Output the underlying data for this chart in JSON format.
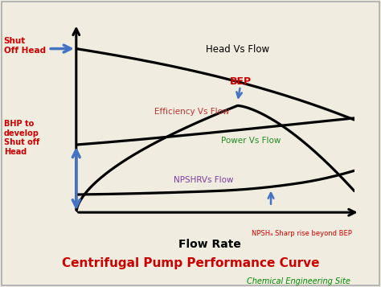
{
  "title": "Centrifugal Pump Performance Curve",
  "subtitle": "Chemical Engineering Site",
  "title_color": "#cc0000",
  "subtitle_color": "#008800",
  "xlabel": "Flow Rate",
  "background_color": "#f0ece0",
  "border_color": "#aaaaaa",
  "head_label": "Head Vs Flow",
  "eff_label": "Efficiency Vs Flow",
  "power_label": "Power Vs Flow",
  "npshr_label": "NPSHRVs Flow",
  "eff_color": "#bb3333",
  "power_color": "#228B22",
  "npshr_color": "#7B3F9E",
  "bep_color": "#cc0000",
  "arrow_color": "#4472c4",
  "shut_off_text": "Shut\nOff Head",
  "bhp_text": "BHP to\ndevelop\nShut off\nHead",
  "npsh_rise_text": "NPSHₐ Sharp rise beyond BEP",
  "annot_color": "#cc0000"
}
